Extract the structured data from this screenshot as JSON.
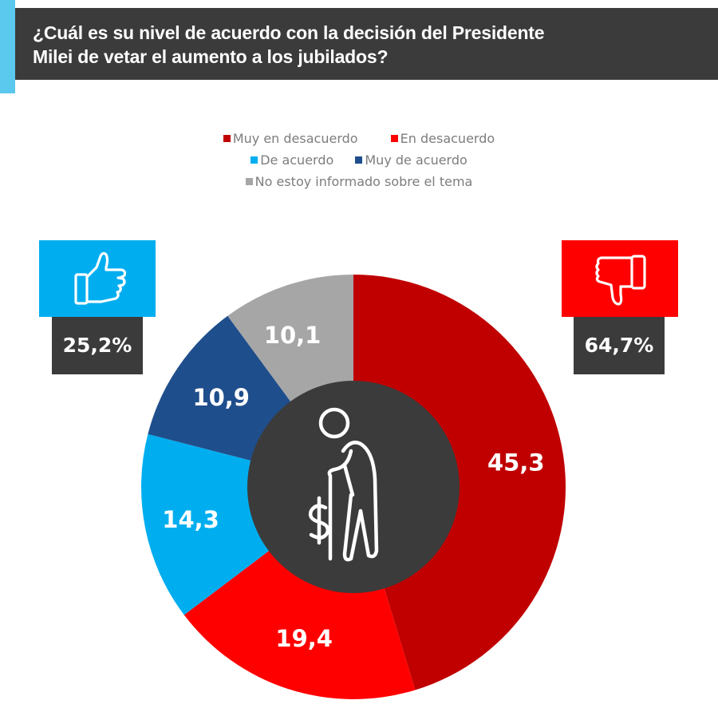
{
  "header": {
    "title_line1": "¿Cuál es su nivel de acuerdo con la decisión del Presidente",
    "title_line2": "Milei de vetar el aumento a los jubilados?"
  },
  "badges": {
    "agree": {
      "icon": "thumbs-up-icon",
      "value": "25,2%",
      "color": "#00aeef"
    },
    "disagree": {
      "icon": "thumbs-down-icon",
      "value": "64,7%",
      "color": "#ff0000"
    }
  },
  "center_icon": "elderly-person-with-cane-dollar-icon",
  "chart_data": {
    "type": "pie",
    "variant": "donut",
    "title": "¿Cuál es su nivel de acuerdo con la decisión del Presidente Milei de vetar el aumento a los jubilados?",
    "legend_position": "top",
    "start": "12 o'clock, clockwise",
    "categories": [
      "Muy en desacuerdo",
      "En desacuerdo",
      "De acuerdo",
      "Muy de acuerdo",
      "No estoy informado sobre el tema"
    ],
    "values": [
      45.3,
      19.4,
      14.3,
      10.9,
      10.1
    ],
    "labels": [
      "45,3",
      "19,4",
      "14,3",
      "10,9",
      "10,1"
    ],
    "colors": [
      "#c00000",
      "#ff0000",
      "#00aeef",
      "#1f4e8c",
      "#a6a6a6"
    ]
  }
}
